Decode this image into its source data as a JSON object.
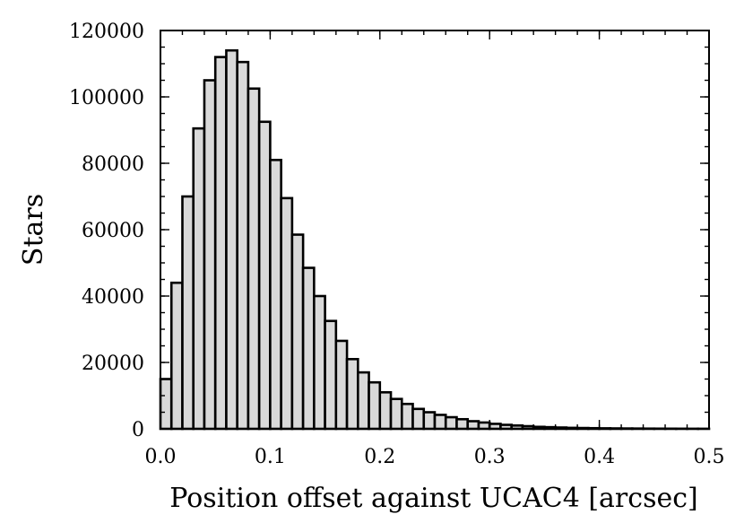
{
  "chart_data": {
    "type": "bar",
    "histogram": true,
    "title": "",
    "xlabel": "Position offset against UCAC4 [arcsec]",
    "ylabel": "Stars",
    "xlim": [
      0.0,
      0.5
    ],
    "ylim": [
      0,
      120000
    ],
    "bin_width": 0.01,
    "x_bin_starts": [
      0.0,
      0.01,
      0.02,
      0.03,
      0.04,
      0.05,
      0.06,
      0.07,
      0.08,
      0.09,
      0.1,
      0.11,
      0.12,
      0.13,
      0.14,
      0.15,
      0.16,
      0.17,
      0.18,
      0.19,
      0.2,
      0.21,
      0.22,
      0.23,
      0.24,
      0.25,
      0.26,
      0.27,
      0.28,
      0.29,
      0.3,
      0.31,
      0.32,
      0.33,
      0.34,
      0.35,
      0.36,
      0.37,
      0.38,
      0.39,
      0.4,
      0.41,
      0.42,
      0.43,
      0.44,
      0.45,
      0.46,
      0.47,
      0.48,
      0.49
    ],
    "values": [
      15000,
      44000,
      70000,
      90500,
      105000,
      112000,
      114000,
      110500,
      102500,
      92500,
      81000,
      69500,
      58500,
      48500,
      40000,
      32500,
      26500,
      21000,
      17000,
      14000,
      11000,
      9000,
      7500,
      6000,
      5000,
      4200,
      3500,
      2900,
      2300,
      1900,
      1500,
      1200,
      1000,
      800,
      600,
      500,
      400,
      300,
      250,
      200,
      160,
      130,
      110,
      90,
      70,
      60,
      50,
      40,
      30,
      25
    ],
    "x_ticks": [
      "0.0",
      "0.1",
      "0.2",
      "0.3",
      "0.4",
      "0.5"
    ],
    "x_tick_values": [
      0.0,
      0.1,
      0.2,
      0.3,
      0.4,
      0.5
    ],
    "y_ticks": [
      "0",
      "20000",
      "40000",
      "60000",
      "80000",
      "100000",
      "120000"
    ],
    "y_tick_values": [
      0,
      20000,
      40000,
      60000,
      80000,
      100000,
      120000
    ],
    "grid": false,
    "legend": "none",
    "colors": {
      "bar_fill": "#d9d9d9",
      "bar_edge": "#000000"
    }
  }
}
